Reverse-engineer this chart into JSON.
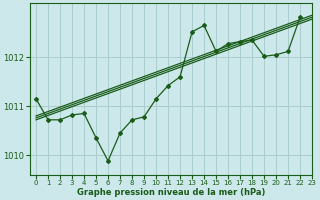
{
  "title": "Graphe pression niveau de la mer (hPa)",
  "bg_color": "#cce8ea",
  "grid_color": "#aacccc",
  "line_color": "#1a5c1a",
  "xlim": [
    -0.5,
    23
  ],
  "ylim": [
    1009.6,
    1013.1
  ],
  "yticks": [
    1010,
    1011,
    1012
  ],
  "xticks": [
    0,
    1,
    2,
    3,
    4,
    5,
    6,
    7,
    8,
    9,
    10,
    11,
    12,
    13,
    14,
    15,
    16,
    17,
    18,
    19,
    20,
    21,
    22,
    23
  ],
  "main_hours": [
    0,
    1,
    2,
    3,
    4,
    5,
    6,
    7,
    8,
    9,
    10,
    11,
    12,
    13,
    14,
    15,
    16,
    17,
    18,
    19,
    20,
    21,
    22
  ],
  "main_data": [
    1011.15,
    1010.72,
    1010.72,
    1010.82,
    1010.85,
    1010.35,
    1009.88,
    1010.45,
    1010.72,
    1010.78,
    1011.15,
    1011.42,
    1011.6,
    1012.52,
    1012.65,
    1012.12,
    1012.28,
    1012.32,
    1012.35,
    1012.02,
    1012.05,
    1012.12,
    1012.82
  ],
  "trend1_x": [
    0,
    23
  ],
  "trend1_y": [
    1010.72,
    1012.78
  ],
  "trend2_x": [
    0,
    23
  ],
  "trend2_y": [
    1010.76,
    1012.82
  ],
  "trend3_x": [
    0,
    23
  ],
  "trend3_y": [
    1010.8,
    1012.86
  ],
  "xlabel_fontsize": 6.0,
  "ytick_fontsize": 6.0,
  "xtick_fontsize": 5.0
}
